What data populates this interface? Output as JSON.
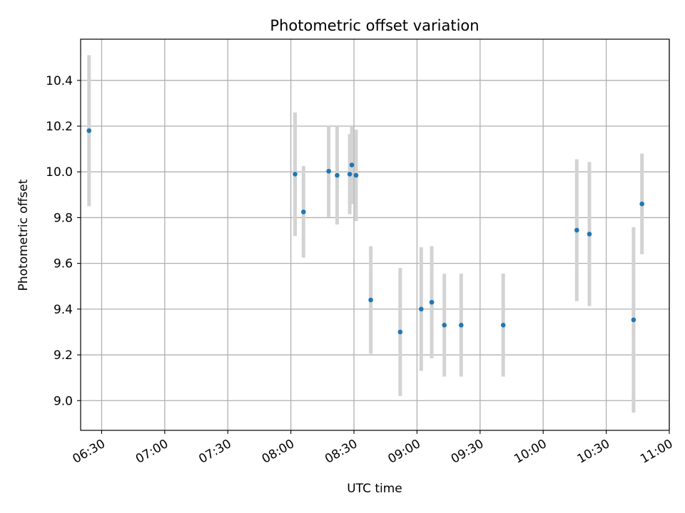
{
  "chart_data": {
    "type": "scatter",
    "title": "Photometric offset variation",
    "xlabel": "UTC time",
    "ylabel": "Photometric offset",
    "xlim": [
      "06:20",
      "11:00"
    ],
    "ylim": [
      8.87,
      10.58
    ],
    "grid": true,
    "x_ticks": [
      "06:30",
      "07:00",
      "07:30",
      "08:00",
      "08:30",
      "09:00",
      "09:30",
      "10:00",
      "10:30",
      "11:00"
    ],
    "y_ticks": [
      "9.0",
      "9.2",
      "9.4",
      "9.6",
      "9.8",
      "10.0",
      "10.2",
      "10.4"
    ],
    "colors": {
      "point": "#1f77b4",
      "errorbar": "#d3d3d3",
      "grid": "#b0b0b0"
    },
    "series": [
      {
        "points": [
          {
            "x": "06:24",
            "y": 10.18,
            "err": 0.33
          },
          {
            "x": "08:02",
            "y": 9.99,
            "err": 0.27
          },
          {
            "x": "08:06",
            "y": 9.825,
            "err": 0.2
          },
          {
            "x": "08:18",
            "y": 10.003,
            "err": 0.2
          },
          {
            "x": "08:22",
            "y": 9.985,
            "err": 0.215
          },
          {
            "x": "08:28",
            "y": 9.99,
            "err": 0.175
          },
          {
            "x": "08:29",
            "y": 10.03,
            "err": 0.17
          },
          {
            "x": "08:31",
            "y": 9.985,
            "err": 0.2
          },
          {
            "x": "08:38",
            "y": 9.44,
            "err": 0.235
          },
          {
            "x": "08:52",
            "y": 9.3,
            "err": 0.28
          },
          {
            "x": "09:02",
            "y": 9.4,
            "err": 0.27
          },
          {
            "x": "09:07",
            "y": 9.43,
            "err": 0.245
          },
          {
            "x": "09:13",
            "y": 9.33,
            "err": 0.225
          },
          {
            "x": "09:21",
            "y": 9.33,
            "err": 0.225
          },
          {
            "x": "09:41",
            "y": 9.33,
            "err": 0.225
          },
          {
            "x": "10:16",
            "y": 9.745,
            "err": 0.31
          },
          {
            "x": "10:22",
            "y": 9.728,
            "err": 0.315
          },
          {
            "x": "10:43",
            "y": 9.353,
            "err": 0.405
          },
          {
            "x": "10:47",
            "y": 9.86,
            "err": 0.22
          }
        ]
      }
    ]
  }
}
